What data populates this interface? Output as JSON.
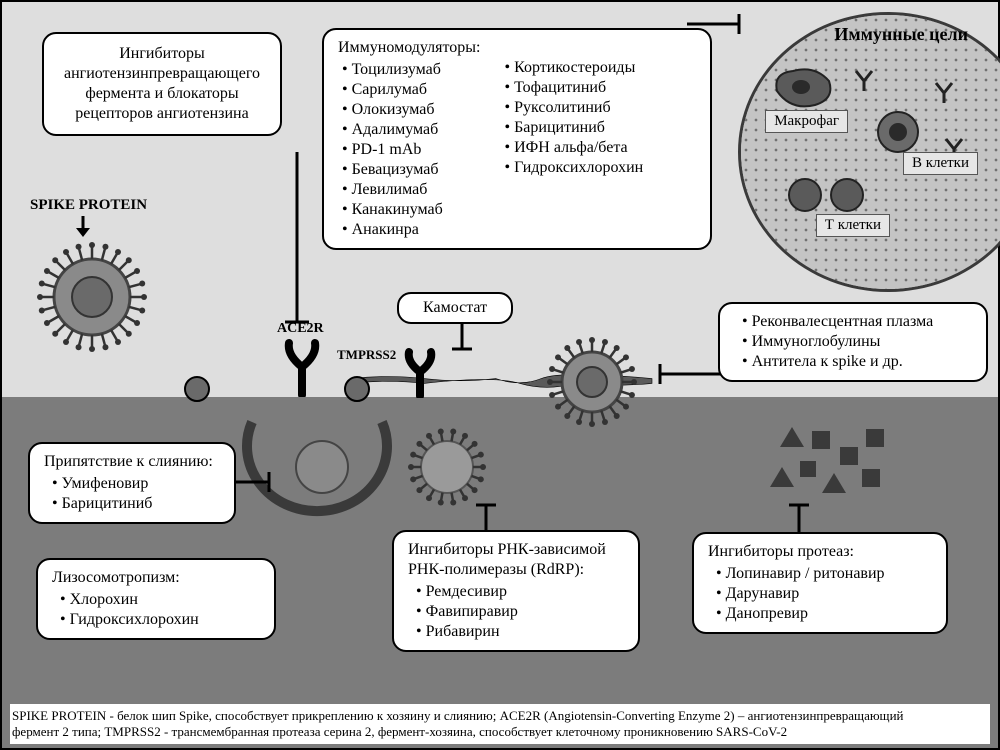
{
  "colors": {
    "bg_top": "#dedede",
    "bg_bottom": "#7c7c7c",
    "membrane": "#5a5a5a",
    "border": "#000000",
    "box_bg": "#ffffff",
    "immune_fill": "#c4c4c4",
    "immune_dot": "#707070",
    "virus_outer": "#6a6a6a",
    "virus_inner": "#8a8a8a",
    "virus_core": "#555555"
  },
  "typography": {
    "body_font": "Times New Roman",
    "box_fontsize": 16,
    "label_fontsize": 15,
    "footer_fontsize": 13
  },
  "labels": {
    "spike_protein": "SPIKE PROTEIN",
    "ace2r": "ACE2R",
    "tmprss2": "TMPRSS2",
    "immune_targets": "Иммунные цели",
    "macrophage": "Макрофаг",
    "b_cells": "В клетки",
    "t_cells": "Т клетки"
  },
  "boxes": {
    "ace_inhibitors": {
      "text": "Ингибиторы ангиотензинпревращающего фермента и блокаторы рецепторов ангиотензина"
    },
    "immunomodulators": {
      "title": "Иммуномодуляторы:",
      "col1": [
        "Тоцилизумаб",
        "Сарилумаб",
        "Олокизумаб",
        "Адалимумаб",
        "PD-1 mAb",
        "Бевацизумаб",
        "Левилимаб",
        "Канакинумаб",
        "Анакинра"
      ],
      "col2": [
        "Кортикостероиды",
        "Тофацитиниб",
        "Руксолитиниб",
        "Барицитиниб",
        "ИФН альфа/бета",
        "Гидроксихлорохин"
      ]
    },
    "camostat": {
      "text": "Камостат"
    },
    "plasma": {
      "items": [
        "Реконвалесцентная плазма",
        "Иммуноглобулины",
        "Антитела к spike и др."
      ]
    },
    "fusion": {
      "title": "Припятствие к слиянию:",
      "items": [
        "Умифеновир",
        "Барицитиниб"
      ]
    },
    "lysosomo": {
      "title": "Лизосомотропизм:",
      "items": [
        "Хлорохин",
        "Гидроксихлорохин"
      ]
    },
    "rdrp": {
      "title": "Ингибиторы РНК-зависимой РНК-полимеразы (RdRP):",
      "items": [
        "Ремдесивир",
        "Фавипиравир",
        "Рибавирин"
      ]
    },
    "protease": {
      "title": "Ингибиторы протеаз:",
      "items": [
        "Лопинавир / ритонавир",
        "Дарунавир",
        "Данопревир"
      ]
    }
  },
  "footer": {
    "line1": "SPIKE PROTEIN - белок шип Spike, способствует прикреплению к хозяину и слиянию; ACE2R (Angiotensin-Converting Enzyme 2) – ангиотензинпревращающий",
    "line2": "фермент 2 типа; TMPRSS2  - трансмембранная протеаза серина 2, фермент-хозяина, способствует клеточному проникновению SARS-CoV-2"
  }
}
